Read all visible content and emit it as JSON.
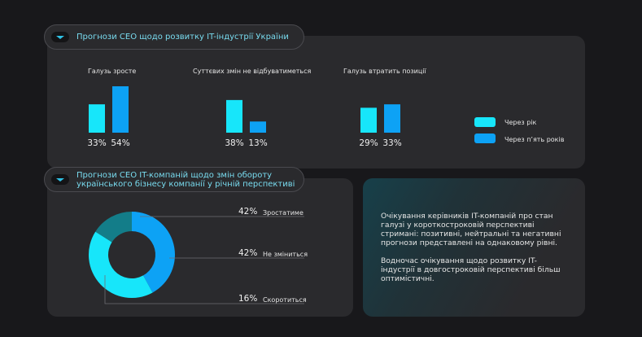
{
  "colors": {
    "series_year": "#17e6fa",
    "series_five": "#0da2f5",
    "donut_grow": "#0da2f5",
    "donut_same": "#17e6fa",
    "donut_shrink": "#137d89",
    "accent_text": "#79dcf0"
  },
  "icons": {
    "pill": "chevron-down-icon"
  },
  "header_top": {
    "title": "Прогнози CEO щодо розвитку IT-індустрії України"
  },
  "header_mid": {
    "title": "Прогнози CEO IT-компаній щодо змін обороту українського бізнесу компанії у річній перспективі"
  },
  "chart_data": [
    {
      "type": "bar",
      "title": "Прогнози CEO щодо розвитку IT-індустрії України",
      "categories": [
        "Галузь зросте",
        "Суттєвих змін не відбуватиметься",
        "Галузь втратить позиції"
      ],
      "series": [
        {
          "name": "Через рік",
          "values": [
            33,
            38,
            29
          ],
          "labels": [
            "33%",
            "38%",
            "29%"
          ]
        },
        {
          "name": "Через п’ять років",
          "values": [
            54,
            13,
            33
          ],
          "labels": [
            "54%",
            "13%",
            "33%"
          ]
        }
      ],
      "ylim": [
        0,
        54
      ],
      "legend": "right"
    },
    {
      "type": "pie",
      "title": "Прогнози CEO IT-компаній щодо змін обороту українського бізнесу компанії у річній перспективі",
      "slices": [
        {
          "label": "Зростатиме",
          "value": 42,
          "pct_label": "42%"
        },
        {
          "label": "Не зміниться",
          "value": 42,
          "pct_label": "42%"
        },
        {
          "label": "Скоротиться",
          "value": 16,
          "pct_label": "16%"
        }
      ]
    }
  ],
  "info": {
    "paragraph1": "Очікування керівників IT-компаній про стан галузі у короткостроковій перспективі стримані: позитивні, нейтральні та негативні прогнози представлені на однаковому рівні.",
    "paragraph2": "Водночас очікування щодо розвитку IT-індустрії в довгостроковій перспективі більш оптимістичні."
  }
}
